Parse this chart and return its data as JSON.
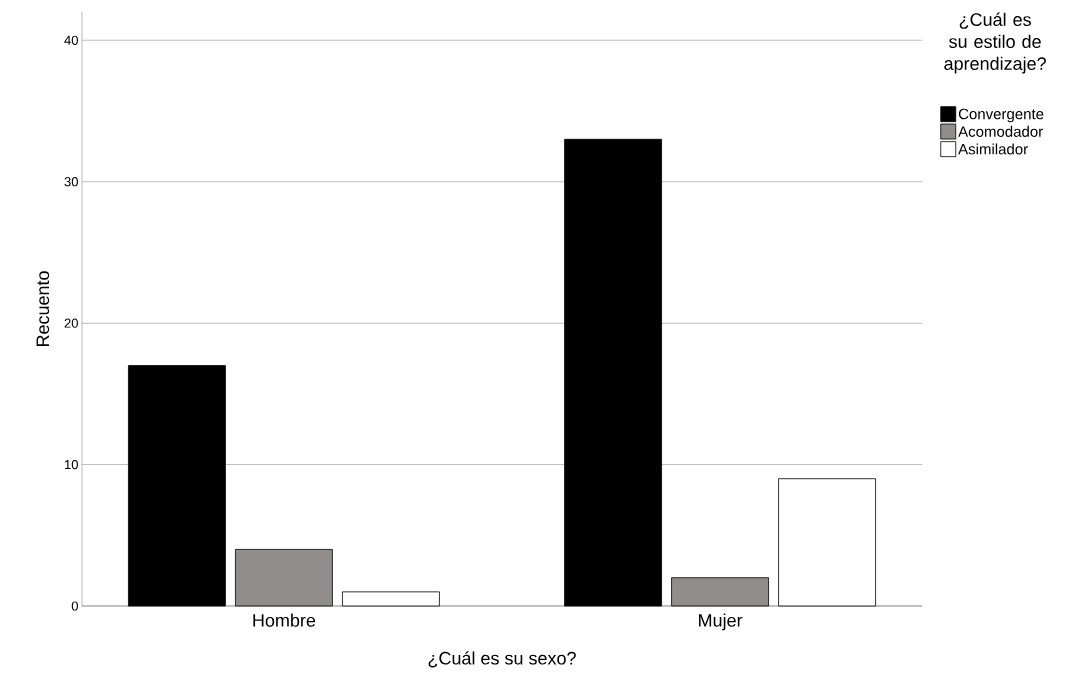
{
  "chart_data": {
    "type": "bar",
    "xlabel": "¿Cuál es su sexo?",
    "ylabel": "Recuento",
    "legend_title": "¿Cuál es su estilo de aprendizaje?",
    "categories": [
      "Hombre",
      "Mujer"
    ],
    "series": [
      {
        "name": "Convergente",
        "color": "#000000",
        "values": [
          17,
          33
        ]
      },
      {
        "name": "Acomodador",
        "color": "#918d8c",
        "values": [
          4,
          2
        ]
      },
      {
        "name": "Asimilador",
        "color": "#ffffff",
        "values": [
          1,
          9
        ]
      }
    ],
    "ylim": [
      0,
      42
    ],
    "yticks": [
      0,
      10,
      20,
      30,
      40
    ],
    "grid": "y",
    "legend": "top right"
  }
}
